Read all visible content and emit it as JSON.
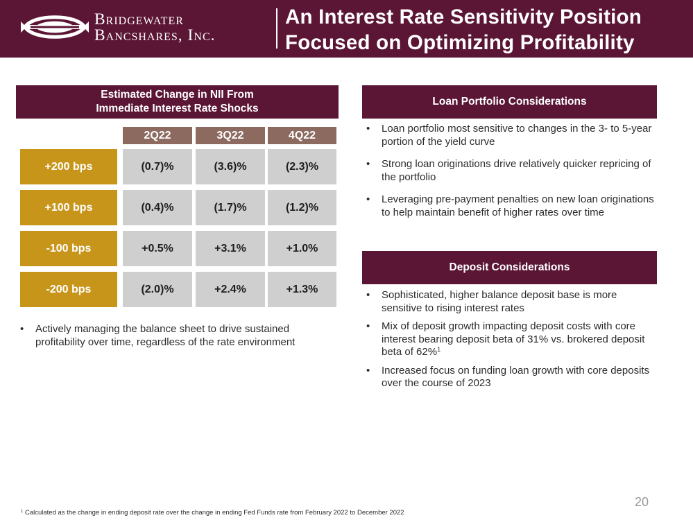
{
  "logo": {
    "line1": "Bridgewater",
    "line2": "Bancshares, Inc."
  },
  "title": {
    "line1": "An Interest Rate Sensitivity Position",
    "line2": "Focused on Optimizing Profitability"
  },
  "nii_panel": {
    "header_line1": "Estimated Change in NII From",
    "header_line2": "Immediate Interest Rate Shocks",
    "columns": [
      "2Q22",
      "3Q22",
      "4Q22"
    ],
    "rows": [
      {
        "label": "+200 bps",
        "values": [
          "(0.7)%",
          "(3.6)%",
          "(2.3)%"
        ]
      },
      {
        "label": "+100 bps",
        "values": [
          "(0.4)%",
          "(1.7)%",
          "(1.2)%"
        ]
      },
      {
        "label": "-100 bps",
        "values": [
          "+0.5%",
          "+3.1%",
          "+1.0%"
        ]
      },
      {
        "label": "-200 bps",
        "values": [
          "(2.0)%",
          "+2.4%",
          "+1.3%"
        ]
      }
    ],
    "bullets": [
      "Actively managing the balance sheet to drive sustained profitability over time, regardless of the rate environment"
    ]
  },
  "loan_panel": {
    "header": "Loan Portfolio Considerations",
    "bullets": [
      "Loan portfolio most sensitive to changes in the 3- to 5-year portion of the yield curve",
      "Strong loan originations drive relatively quicker repricing of the portfolio",
      "Leveraging pre-payment penalties on new loan originations to help maintain benefit of higher rates over time"
    ]
  },
  "deposit_panel": {
    "header": "Deposit Considerations",
    "bullets": [
      "Sophisticated, higher balance deposit base is more sensitive to rising interest rates",
      "Mix of deposit growth impacting deposit costs with core interest bearing deposit beta of 31% vs. brokered deposit beta of 62%",
      "Increased focus on funding loan growth with core deposits over the course of 2023"
    ],
    "footnote_marker": "1"
  },
  "page_number": "20",
  "footnote": {
    "marker": "1",
    "text": "Calculated as the change in ending deposit rate over the change in ending Fed Funds rate from February 2022 to December 2022"
  },
  "colors": {
    "maroon": "#5b1535",
    "gold": "#c8951b",
    "taupe": "#8c6a60",
    "gray_cell": "#cfcfcf"
  },
  "icons": {
    "logo_mark": "bridgewater-logo-icon"
  }
}
